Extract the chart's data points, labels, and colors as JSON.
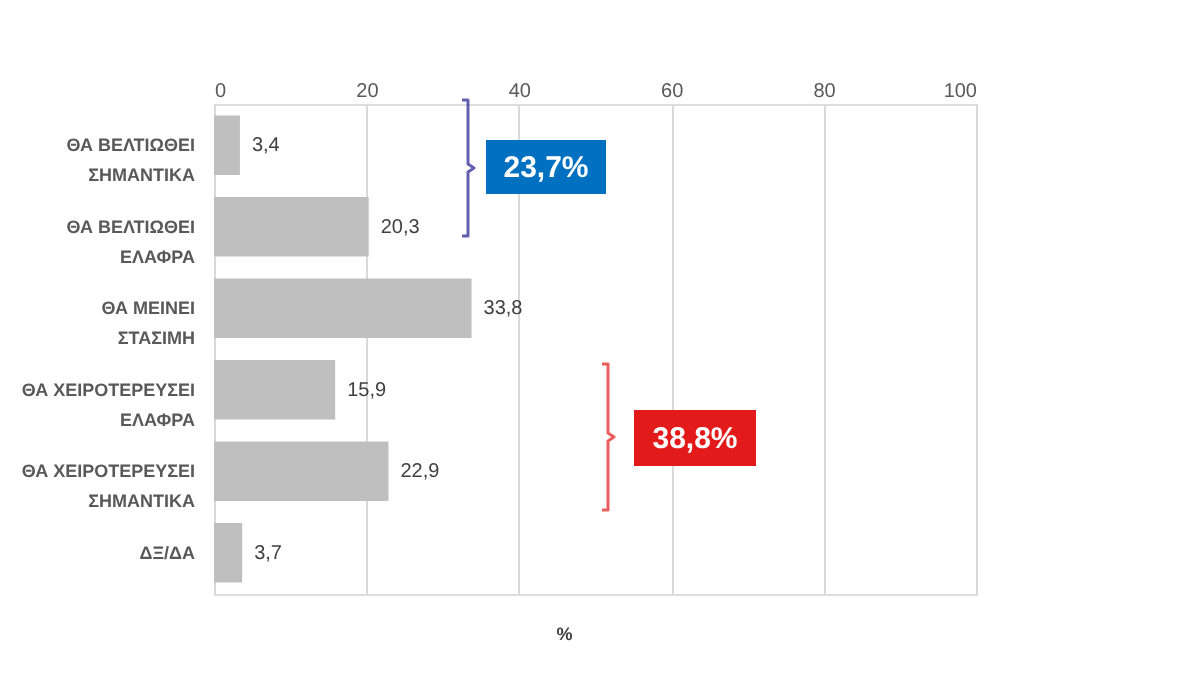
{
  "chart_data": {
    "type": "bar",
    "orientation": "horizontal",
    "xlabel": "%",
    "categories": [
      "ΘΑ ΒΕΛΤΙΩΘΕΙ ΣΗΜΑΝΤΙΚΑ",
      "ΘΑ ΒΕΛΤΙΩΘΕΙ ΕΛΑΦΡΑ",
      "ΘΑ ΜΕΙΝΕΙ ΣΤΑΣΙΜΗ",
      "ΘΑ ΧΕΙΡΟΤΕΡΕΥΣΕΙ ΕΛΑΦΡΑ",
      "ΘΑ ΧΕΙΡΟΤΕΡΕΥΣΕΙ ΣΗΜΑΝΤΙΚΑ",
      "ΔΞ/ΔΑ"
    ],
    "values": [
      3.4,
      20.3,
      33.8,
      15.9,
      22.9,
      3.7
    ],
    "value_labels": [
      "3,4",
      "20,3",
      "33,8",
      "15,9",
      "22,9",
      "3,7"
    ],
    "color": "#bfbfbf",
    "xlim": [
      0,
      100
    ],
    "xticks": [
      0,
      20,
      40,
      60,
      80,
      100
    ],
    "grid": "x",
    "annotations": [
      "23,7%",
      "38,8%"
    ]
  }
}
